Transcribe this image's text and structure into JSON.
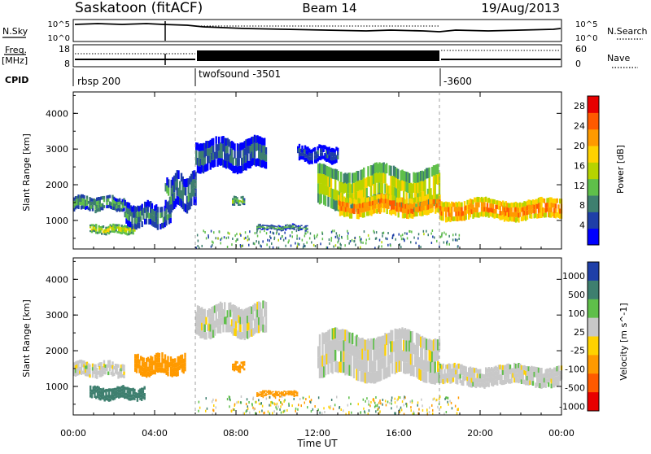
{
  "header": {
    "station": "Saskatoon (fitACF)",
    "beam": "Beam 14",
    "date": "19/Aug/2013"
  },
  "summary": {
    "nsky_label": "N.Sky",
    "nsearch_label": "N.Search",
    "freq_label": "Freq.",
    "freq_unit": "[MHz]",
    "nave_label": "Nave",
    "cpid_label": "CPID",
    "count_ticks_left": [
      "10^5",
      "10^0"
    ],
    "count_ticks_right": [
      "10^5",
      "10^0"
    ],
    "freq_ticks": [
      "18",
      "8"
    ],
    "nave_ticks": [
      "60",
      "0"
    ],
    "cpid_segments": [
      {
        "label": "rbsp 200",
        "start_hour": 0
      },
      {
        "label": "twofsound -3501",
        "start_hour": 6
      },
      {
        "label": "-3600",
        "start_hour": 18
      }
    ]
  },
  "chart_data": [
    {
      "type": "heatmap",
      "panel": "power",
      "xlabel": "Time UT",
      "ylabel": "Slant Range [km]",
      "xlim": [
        0,
        24
      ],
      "ylim": [
        200,
        4600
      ],
      "x_ticks": [
        "00:00",
        "04:00",
        "08:00",
        "12:00",
        "16:00",
        "20:00",
        "00:00"
      ],
      "y_ticks": [
        1000,
        2000,
        3000,
        4000
      ],
      "colorbar": {
        "label": "Power [dB]",
        "ticks": [
          4,
          8,
          12,
          16,
          20,
          24,
          28
        ],
        "range": [
          0,
          30
        ],
        "colors": [
          "#0000ff",
          "#1f3fa8",
          "#3e7f6f",
          "#5fbf4a",
          "#b6d400",
          "#ffd200",
          "#ff9a00",
          "#ff5a00",
          "#e80000"
        ]
      },
      "echo_bands": [
        {
          "t": [
            0.0,
            2.5
          ],
          "r": [
            1250,
            1700
          ],
          "level": 12
        },
        {
          "t": [
            0.8,
            3.0
          ],
          "r": [
            600,
            900
          ],
          "level": 18
        },
        {
          "t": [
            2.5,
            4.8
          ],
          "r": [
            800,
            1500
          ],
          "level": 10
        },
        {
          "t": [
            4.5,
            6.0
          ],
          "r": [
            1300,
            2300
          ],
          "level": 10
        },
        {
          "t": [
            6.0,
            9.5
          ],
          "r": [
            2400,
            3300
          ],
          "level": 8
        },
        {
          "t": [
            7.8,
            8.4
          ],
          "r": [
            1400,
            1700
          ],
          "level": 14
        },
        {
          "t": [
            9.0,
            11.5
          ],
          "r": [
            700,
            900
          ],
          "level": 12
        },
        {
          "t": [
            11.0,
            13.0
          ],
          "r": [
            2600,
            3100
          ],
          "level": 6
        },
        {
          "t": [
            12.0,
            18.0
          ],
          "r": [
            1300,
            2500
          ],
          "level": 18
        },
        {
          "t": [
            13.0,
            18.0
          ],
          "r": [
            1100,
            1700
          ],
          "level": 26
        },
        {
          "t": [
            18.0,
            24.0
          ],
          "r": [
            1000,
            1600
          ],
          "level": 26
        }
      ]
    },
    {
      "type": "heatmap",
      "panel": "velocity",
      "xlabel": "Time UT",
      "ylabel": "Slant Range [km]",
      "xlim": [
        0,
        24
      ],
      "ylim": [
        200,
        4600
      ],
      "x_ticks": [
        "00:00",
        "04:00",
        "08:00",
        "12:00",
        "16:00",
        "20:00",
        "00:00"
      ],
      "y_ticks": [
        1000,
        2000,
        3000,
        4000
      ],
      "colorbar": {
        "label": "Velocity [m s^-1]",
        "ticks": [
          1000,
          500,
          100,
          25,
          -25,
          -100,
          -500,
          -1000
        ],
        "colors": [
          "#1f3fa8",
          "#3e7f6f",
          "#5fbf4a",
          "#c8c8c8",
          "#ffd200",
          "#ff9a00",
          "#ff5a00",
          "#e80000"
        ]
      },
      "echo_bands": [
        {
          "t": [
            0.0,
            2.5
          ],
          "r": [
            1250,
            1700
          ],
          "v": 0
        },
        {
          "t": [
            0.8,
            3.5
          ],
          "r": [
            600,
            1000
          ],
          "v": 150
        },
        {
          "t": [
            3.0,
            5.5
          ],
          "r": [
            1300,
            1900
          ],
          "v": -200
        },
        {
          "t": [
            6.0,
            9.5
          ],
          "r": [
            2400,
            3300
          ],
          "v": 0
        },
        {
          "t": [
            7.8,
            8.4
          ],
          "r": [
            1400,
            1700
          ],
          "v": -400
        },
        {
          "t": [
            9.0,
            11.0
          ],
          "r": [
            700,
            900
          ],
          "v": -150
        },
        {
          "t": [
            12.0,
            18.0
          ],
          "r": [
            1200,
            2500
          ],
          "v": 0
        },
        {
          "t": [
            18.0,
            24.0
          ],
          "r": [
            1000,
            1600
          ],
          "v": 0
        }
      ]
    }
  ]
}
